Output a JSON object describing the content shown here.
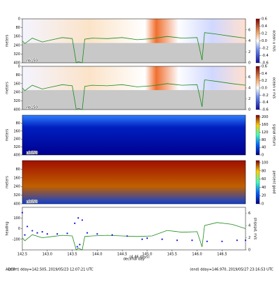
{
  "chart_data": [
    {
      "type": "heatmap",
      "ylabel": "meters",
      "ylim": [
        400,
        0
      ],
      "yticks": [
        0,
        80,
        160,
        240,
        320,
        400
      ],
      "instrument": "nb150",
      "colormap": "bwr",
      "colorbar": {
        "label": "ocean u m/s",
        "lim": [
          -0.6,
          0.6
        ],
        "ticks": [
          0.6,
          0.4,
          0.2,
          {
            "value": 0,
            "label": "0.0"
          },
          -0.2,
          -0.4,
          -0.6
        ]
      },
      "y2lim": [
        0,
        8
      ],
      "y2ticks": [
        0,
        2,
        4,
        6
      ],
      "series": [
        {
          "color": "#1a8a1a",
          "axis": "y2",
          "x": [
            142.5,
            142.55,
            142.7,
            142.9,
            143.1,
            143.3,
            143.5,
            143.58,
            143.62,
            143.7,
            143.75,
            143.9,
            144.2,
            144.5,
            144.8,
            145.1,
            145.4,
            145.7,
            146.0,
            146.1,
            146.15,
            146.4,
            146.7,
            146.97
          ],
          "values": [
            4,
            3.5,
            4.5,
            3.8,
            4.2,
            4.6,
            4.4,
            0,
            0.2,
            0,
            4.3,
            4.5,
            4.4,
            4.6,
            4.2,
            4.4,
            4.8,
            4.5,
            4.6,
            0.5,
            5.5,
            5.2,
            4.8,
            4.5
          ]
        }
      ]
    },
    {
      "type": "heatmap",
      "ylabel": "meters",
      "ylim": [
        400,
        0
      ],
      "yticks": [
        0,
        80,
        160,
        240,
        320,
        400
      ],
      "instrument": "nb150",
      "colormap": "bwr",
      "colorbar": {
        "label": "ocean v m/s",
        "lim": [
          -0.6,
          0.6
        ],
        "ticks": [
          0.6,
          0.4,
          0.2,
          {
            "value": 0,
            "label": "0.0"
          },
          -0.2,
          -0.4,
          -0.6
        ]
      },
      "y2lim": [
        0,
        8
      ],
      "y2ticks": [
        0,
        2,
        4,
        6
      ],
      "series": [
        {
          "color": "#1a8a1a",
          "axis": "y2",
          "x": [
            142.5,
            142.55,
            142.7,
            142.9,
            143.1,
            143.3,
            143.5,
            143.58,
            143.62,
            143.7,
            143.75,
            143.9,
            144.2,
            144.5,
            144.8,
            145.1,
            145.4,
            145.7,
            146.0,
            146.1,
            146.15,
            146.4,
            146.7,
            146.97
          ],
          "values": [
            4,
            3.5,
            4.5,
            3.8,
            4.2,
            4.6,
            4.4,
            0,
            0.2,
            0,
            4.3,
            4.5,
            4.4,
            4.6,
            4.2,
            4.4,
            4.8,
            4.5,
            4.6,
            0.5,
            5.5,
            5.2,
            4.8,
            4.5
          ]
        }
      ]
    },
    {
      "type": "heatmap",
      "ylabel": "meters",
      "ylim": [
        400,
        0
      ],
      "yticks": [
        80,
        160,
        240,
        320,
        400
      ],
      "instrument": "nb150",
      "colormap": "jet-low",
      "colorbar": {
        "label": "signal return",
        "lim": [
          0,
          210
        ],
        "ticks": [
          200,
          160,
          120,
          80,
          40,
          0
        ]
      },
      "series": []
    },
    {
      "type": "heatmap",
      "ylabel": "meters",
      "ylim": [
        400,
        0
      ],
      "yticks": [
        80,
        160,
        240,
        320,
        400
      ],
      "instrument": "nb150",
      "colormap": "jet-high",
      "colorbar": {
        "label": "percent good",
        "lim": [
          0,
          105
        ],
        "ticks": [
          100,
          80,
          60,
          40,
          20,
          0
        ]
      },
      "series": []
    },
    {
      "type": "line",
      "ylabel": "heading",
      "ylim": [
        -200,
        200
      ],
      "yticks": [
        -100,
        0,
        100
      ],
      "y2label": "shipspd, m/s",
      "y2lim": [
        0,
        7
      ],
      "y2ticks": [
        0,
        2,
        4,
        6
      ],
      "xlabel": "decimal day",
      "xlim": [
        142.5,
        146.97
      ],
      "xticks": [
        {
          "value": 142.5,
          "label": "142.5"
        },
        {
          "value": 143,
          "label": "143.0"
        },
        {
          "value": 143.5,
          "label": "143.5"
        },
        {
          "value": 144,
          "label": "144.0"
        },
        {
          "value": 144.5,
          "label": "144.5"
        },
        {
          "value": 145,
          "label": "145.0"
        },
        {
          "value": 145.5,
          "label": "145.5"
        },
        {
          "value": 146,
          "label": "146.0"
        },
        {
          "value": 146.5,
          "label": "146.5"
        }
      ],
      "series": [
        {
          "color": "#1a8a1a",
          "axis": "y2",
          "x": [
            142.5,
            142.55,
            142.7,
            142.9,
            143.1,
            143.3,
            143.5,
            143.58,
            143.62,
            143.7,
            143.75,
            143.9,
            144.2,
            144.5,
            144.8,
            145.1,
            145.4,
            145.7,
            146.0,
            146.1,
            146.15,
            146.4,
            146.7,
            146.97
          ],
          "values": [
            2,
            1.5,
            2.5,
            2,
            2.2,
            2.4,
            2.3,
            0,
            0.3,
            0,
            2.2,
            2.3,
            2.4,
            2.3,
            2.2,
            2.3,
            3.2,
            2.9,
            3,
            0.5,
            4,
            4.5,
            4.2,
            3.5
          ]
        },
        {
          "color": "#1010e0",
          "marker": "dot",
          "x": [
            142.5,
            142.55,
            142.6,
            142.7,
            142.8,
            142.9,
            143.0,
            143.2,
            143.4,
            143.55,
            143.6,
            143.62,
            143.65,
            143.7,
            143.8,
            144.0,
            144.3,
            144.6,
            144.9,
            145.0,
            145.3,
            145.6,
            145.9,
            146.2,
            146.5,
            146.8,
            146.97
          ],
          "values": [
            150,
            -60,
            20,
            -20,
            -40,
            -30,
            -50,
            -50,
            -45,
            50,
            -170,
            100,
            -150,
            80,
            -40,
            -50,
            -60,
            -70,
            -100,
            -90,
            -100,
            -110,
            -110,
            -120,
            -120,
            -110,
            -110
          ]
        }
      ]
    }
  ],
  "footer": {
    "duration": "(4.46 days)",
    "left": "ADCP",
    "start": "(start) dday=142.505, 2019/05/23 12:07:21 UTC",
    "end": "(end) dday=146.970, 2019/05/27 23:16:53 UTC"
  }
}
